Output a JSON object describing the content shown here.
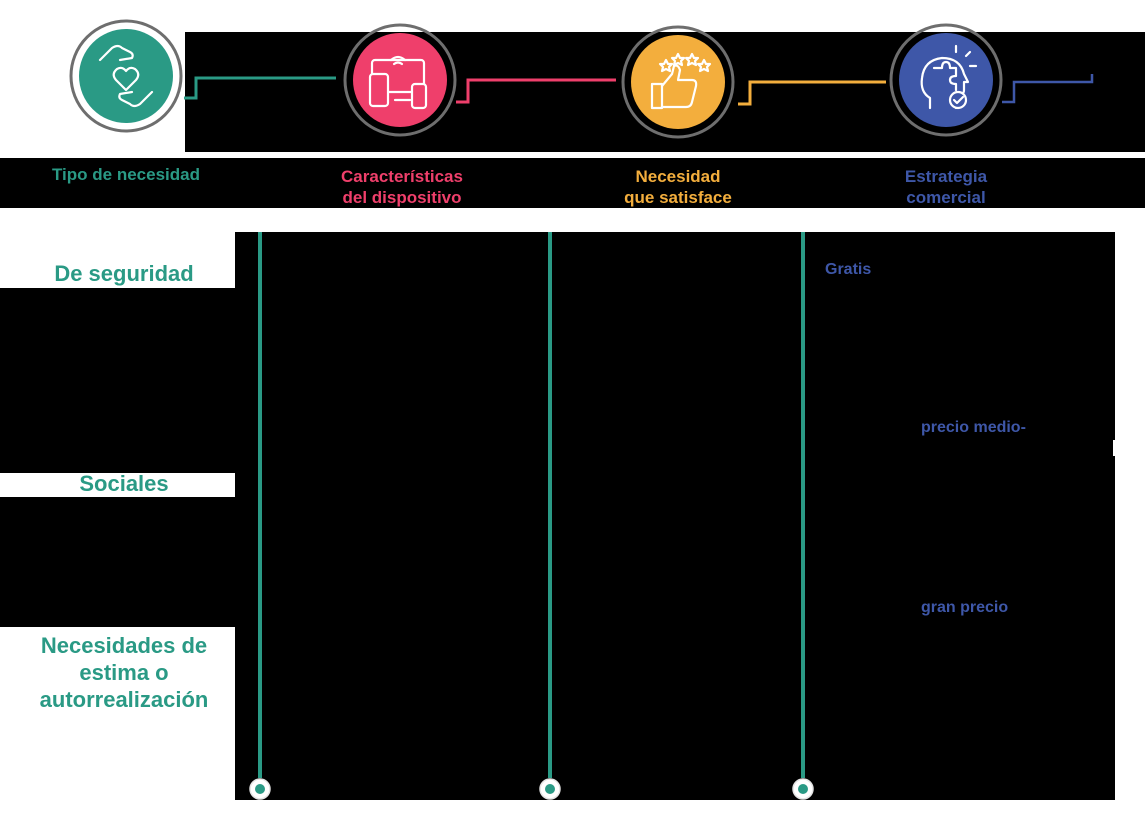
{
  "steps": [
    {
      "title": "Tipo de necesidad",
      "color": "#2a9a85",
      "icon": "hands-heart-icon"
    },
    {
      "title": "Características\ndel dispositivo",
      "color": "#ef3f6b",
      "icon": "devices-icon"
    },
    {
      "title": "Necesidad\nque satisface",
      "color": "#f3ae3d",
      "icon": "thumbs-up-stars-icon"
    },
    {
      "title": "Estrategia\ncomercial",
      "color": "#3e57a8",
      "icon": "puzzle-head-icon"
    }
  ],
  "rows": [
    {
      "label": "De seguridad"
    },
    {
      "label": "Sociales"
    },
    {
      "label": "Necesidades de\nestima o\nautorrealización"
    }
  ],
  "strategies": [
    {
      "text": "Gratis"
    },
    {
      "text": "precio medio-"
    },
    {
      "text": "gran precio"
    }
  ],
  "colors": {
    "teal": "#2a9a85",
    "pink": "#ef3f6b",
    "yellow": "#f3ae3d",
    "blue": "#3e57a8",
    "gray": "#6e6e6e"
  }
}
